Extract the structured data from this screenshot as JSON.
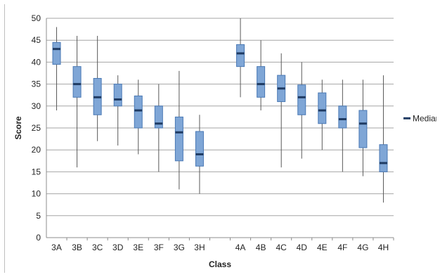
{
  "chart_data": {
    "type": "box",
    "title": "",
    "xlabel": "Class",
    "ylabel": "Score",
    "ylim": [
      0,
      50
    ],
    "yticks": [
      0,
      5,
      10,
      15,
      20,
      25,
      30,
      35,
      40,
      45,
      50
    ],
    "grid": true,
    "legend": {
      "position": "right",
      "label": "Median"
    },
    "colors": {
      "box_fill": "#7fa6d6",
      "box_stroke": "#4a79b5",
      "median": "#1f3b63",
      "whisker": "#595959",
      "grid": "#a6a6a6"
    },
    "groups": [
      {
        "category": "3A",
        "min": 29,
        "q1": 39.5,
        "median": 43,
        "q3": 44.5,
        "max": 48
      },
      {
        "category": "3B",
        "min": 16,
        "q1": 32,
        "median": 35,
        "q3": 39,
        "max": 46
      },
      {
        "category": "3C",
        "min": 22,
        "q1": 28,
        "median": 32,
        "q3": 36.3,
        "max": 46
      },
      {
        "category": "3D",
        "min": 21,
        "q1": 30,
        "median": 31.5,
        "q3": 35,
        "max": 37
      },
      {
        "category": "3E",
        "min": 19,
        "q1": 25,
        "median": 29,
        "q3": 32.3,
        "max": 36
      },
      {
        "category": "3F",
        "min": 15,
        "q1": 25,
        "median": 26,
        "q3": 30,
        "max": 35
      },
      {
        "category": "3G",
        "min": 11,
        "q1": 17.5,
        "median": 24,
        "q3": 27.5,
        "max": 38
      },
      {
        "category": "3H",
        "min": 10,
        "q1": 16.3,
        "median": 19,
        "q3": 24.2,
        "max": 28
      },
      {
        "category": "",
        "gap": true
      },
      {
        "category": "4A",
        "min": 32,
        "q1": 39,
        "median": 42,
        "q3": 44,
        "max": 50
      },
      {
        "category": "4B",
        "min": 29,
        "q1": 32,
        "median": 35,
        "q3": 39,
        "max": 45
      },
      {
        "category": "4C",
        "min": 16,
        "q1": 31,
        "median": 34,
        "q3": 37,
        "max": 42
      },
      {
        "category": "4D",
        "min": 18,
        "q1": 28,
        "median": 32,
        "q3": 34.8,
        "max": 40
      },
      {
        "category": "4E",
        "min": 20,
        "q1": 26,
        "median": 29,
        "q3": 33,
        "max": 36
      },
      {
        "category": "4F",
        "min": 15,
        "q1": 25,
        "median": 27,
        "q3": 30,
        "max": 36
      },
      {
        "category": "4G",
        "min": 14,
        "q1": 20.5,
        "median": 26,
        "q3": 29,
        "max": 36
      },
      {
        "category": "4H",
        "min": 8,
        "q1": 15,
        "median": 17,
        "q3": 21.2,
        "max": 37
      }
    ]
  }
}
